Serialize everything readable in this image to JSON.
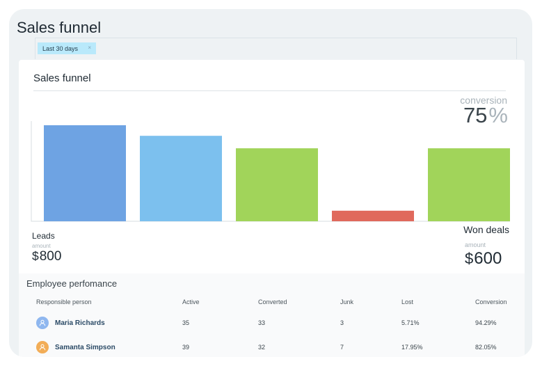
{
  "page": {
    "title": "Sales funnel"
  },
  "filter": {
    "label": "Last 30 days"
  },
  "funnel": {
    "title": "Sales funnel",
    "conversion_label": "conversion",
    "conversion_value": "75",
    "conversion_unit": "%",
    "leads_label": "Leads",
    "leads_amount_label": "amount",
    "leads_currency": "$",
    "leads_amount": "800",
    "won_label": "Won deals",
    "won_amount_label": "amount",
    "won_currency": "$",
    "won_amount": "600"
  },
  "chart_data": {
    "type": "bar",
    "stages": 5,
    "values": [
      100,
      89,
      76,
      11,
      76
    ],
    "colors": [
      "#6ea3e3",
      "#7cc0ee",
      "#a1d45a",
      "#e0695c",
      "#a1d45a"
    ],
    "ylim": [
      0,
      100
    ],
    "grid": false
  },
  "employees": {
    "title": "Employee perfomance",
    "columns": {
      "person": "Responsible person",
      "active": "Active",
      "converted": "Converted",
      "junk": "Junk",
      "lost": "Lost",
      "conversion": "Conversion"
    },
    "rows": [
      {
        "name": "Maria Richards",
        "active": "35",
        "converted": "33",
        "junk": "3",
        "lost": "5.71%",
        "conversion": "94.29%",
        "avatar_color": "#8fb7ef"
      },
      {
        "name": "Samanta Simpson",
        "active": "39",
        "converted": "32",
        "junk": "7",
        "lost": "17.95%",
        "conversion": "82.05%",
        "avatar_color": "#f2ad57"
      }
    ]
  }
}
